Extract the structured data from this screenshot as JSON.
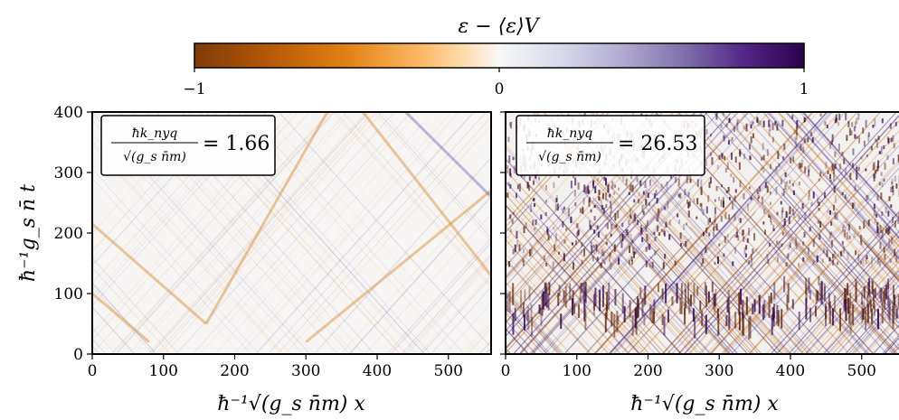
{
  "chart_data": {
    "type": "heatmap",
    "colorbar": {
      "label": "ε − ⟨ε⟩V",
      "min": -1,
      "max": 1,
      "tick_labels": [
        "−1",
        "0",
        "1"
      ],
      "colormap": "PuOr",
      "low_color": "#7f3b08",
      "mid_color": "#f7f7f7",
      "high_color": "#2d004b",
      "placement": "top"
    },
    "ylabel": "ħ⁻¹g_s n̄ t",
    "panels": [
      {
        "xlabel": "ħ⁻¹√(g_s n̄m) x",
        "xlim": [
          0,
          560
        ],
        "ylim": [
          0,
          400
        ],
        "xtick_labels": [
          "0",
          "100",
          "200",
          "300",
          "400",
          "500"
        ],
        "ytick_labels": [
          "0",
          "100",
          "200",
          "300",
          "400"
        ],
        "annotation": {
          "numerator": "ħk_nyq",
          "denominator": "√(g_s n̄m)",
          "value_text": "= 1.66"
        }
      },
      {
        "xlabel": "ħ⁻¹√(g_s n̄m) x",
        "xlim": [
          0,
          560
        ],
        "ylim": [
          0,
          400
        ],
        "xtick_labels": [
          "0",
          "100",
          "200",
          "300",
          "400",
          "500"
        ],
        "ytick_labels": [],
        "annotation": {
          "numerator": "ħk_nyq",
          "denominator": "√(g_s n̄m)",
          "value_text": "= 26.53"
        }
      }
    ]
  }
}
